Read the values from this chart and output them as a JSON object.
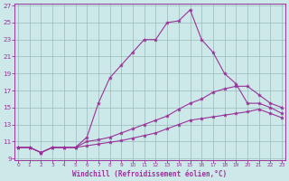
{
  "xlabel": "Windchill (Refroidissement éolien,°C)",
  "xlim": [
    0,
    23
  ],
  "ylim": [
    9,
    27
  ],
  "yticks": [
    9,
    11,
    13,
    15,
    17,
    19,
    21,
    23,
    25,
    27
  ],
  "xticks": [
    0,
    1,
    2,
    3,
    4,
    5,
    6,
    7,
    8,
    9,
    10,
    11,
    12,
    13,
    14,
    15,
    16,
    17,
    18,
    19,
    20,
    21,
    22,
    23
  ],
  "bg_color": "#cce8e8",
  "line_color": "#993399",
  "grid_color": "#99bbbb",
  "line1_x": [
    0,
    1,
    2,
    3,
    4,
    5,
    6,
    7,
    8,
    9,
    10,
    11,
    12,
    13,
    14,
    15,
    16,
    17,
    18,
    19,
    20,
    21,
    22,
    23
  ],
  "line1_y": [
    10.3,
    10.3,
    9.7,
    10.3,
    10.3,
    10.3,
    11.5,
    15.5,
    18.5,
    20.0,
    21.5,
    23.0,
    23.0,
    25.0,
    25.2,
    26.5,
    23.0,
    21.5,
    19.0,
    17.8,
    15.5,
    15.5,
    15.0,
    14.3
  ],
  "line2_x": [
    0,
    1,
    2,
    3,
    4,
    5,
    6,
    7,
    8,
    9,
    10,
    11,
    12,
    13,
    14,
    15,
    16,
    17,
    18,
    19,
    20,
    21,
    22,
    23
  ],
  "line2_y": [
    10.3,
    10.3,
    9.7,
    10.3,
    10.3,
    10.3,
    11.0,
    11.2,
    11.5,
    12.0,
    12.5,
    13.0,
    13.5,
    14.0,
    14.8,
    15.5,
    16.0,
    16.8,
    17.2,
    17.5,
    17.5,
    16.5,
    15.5,
    15.0
  ],
  "line3_x": [
    0,
    1,
    2,
    3,
    4,
    5,
    6,
    7,
    8,
    9,
    10,
    11,
    12,
    13,
    14,
    15,
    16,
    17,
    18,
    19,
    20,
    21,
    22,
    23
  ],
  "line3_y": [
    10.3,
    10.3,
    9.7,
    10.3,
    10.3,
    10.3,
    10.5,
    10.7,
    10.9,
    11.1,
    11.4,
    11.7,
    12.0,
    12.5,
    13.0,
    13.5,
    13.7,
    13.9,
    14.1,
    14.3,
    14.5,
    14.8,
    14.3,
    13.8
  ]
}
